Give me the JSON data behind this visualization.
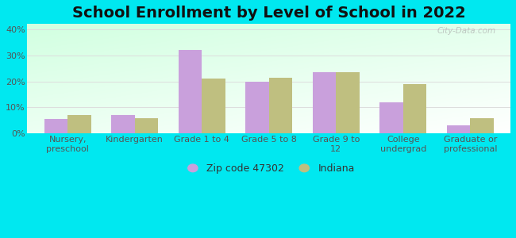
{
  "title": "School Enrollment by Level of School in 2022",
  "categories": [
    "Nursery,\npreschool",
    "Kindergarten",
    "Grade 1 to 4",
    "Grade 5 to 8",
    "Grade 9 to\n12",
    "College\nundergrad",
    "Graduate or\nprofessional"
  ],
  "zip_values": [
    5.5,
    7.0,
    32.0,
    20.0,
    23.5,
    12.0,
    3.0
  ],
  "indiana_values": [
    7.0,
    6.0,
    21.0,
    21.5,
    23.5,
    19.0,
    6.0
  ],
  "zip_color": "#c9a0dc",
  "indiana_color": "#bfbf80",
  "background_outer": "#00e8f0",
  "ylim": [
    0,
    42
  ],
  "yticks": [
    0,
    10,
    20,
    30,
    40
  ],
  "ytick_labels": [
    "0%",
    "10%",
    "20%",
    "30%",
    "40%"
  ],
  "legend_labels": [
    "Zip code 47302",
    "Indiana"
  ],
  "watermark": "City-Data.com",
  "bar_width": 0.35,
  "title_fontsize": 14,
  "tick_fontsize": 8,
  "legend_fontsize": 9
}
